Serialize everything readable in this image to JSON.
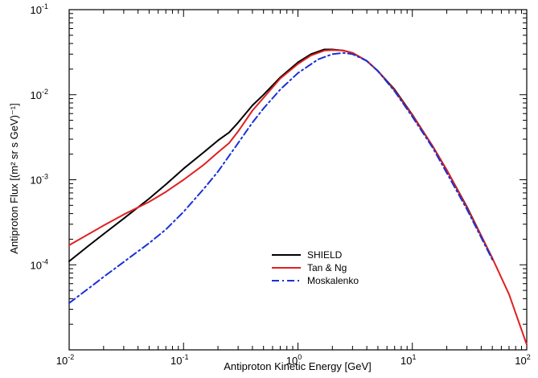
{
  "chart_data": {
    "type": "line",
    "title": "",
    "xlabel": "Antiproton Kinetic Energy [GeV]",
    "ylabel": "Antiproton Flux [(m² sr s GeV)⁻¹]",
    "xscale": "log",
    "yscale": "log",
    "xlim": [
      0.01,
      100
    ],
    "ylim": [
      1e-05,
      0.1
    ],
    "grid": false,
    "legend_position": "lower-center",
    "x_ticks": [
      {
        "value": 0.01,
        "base": "10",
        "exp": "-2"
      },
      {
        "value": 0.1,
        "base": "10",
        "exp": "-1"
      },
      {
        "value": 1,
        "base": "10",
        "exp": "0"
      },
      {
        "value": 10,
        "base": "10",
        "exp": "1"
      },
      {
        "value": 100,
        "base": "10",
        "exp": "2"
      }
    ],
    "y_ticks": [
      {
        "value": 0.1,
        "base": "10",
        "exp": "-1"
      },
      {
        "value": 0.01,
        "base": "10",
        "exp": "-2"
      },
      {
        "value": 0.001,
        "base": "10",
        "exp": "-3"
      },
      {
        "value": 0.0001,
        "base": "10",
        "exp": "-4"
      }
    ],
    "series": [
      {
        "name": "SHIELD",
        "color": "#000000",
        "style": "solid",
        "x": [
          0.01,
          0.015,
          0.02,
          0.03,
          0.05,
          0.07,
          0.1,
          0.15,
          0.2,
          0.25,
          0.3,
          0.4,
          0.5,
          0.7,
          1.0,
          1.3,
          1.7,
          2.0,
          2.5,
          3.0,
          4.0,
          5.0,
          7.0,
          10,
          15,
          20,
          30,
          50
        ],
        "y": [
          0.00011,
          0.00017,
          0.00023,
          0.00035,
          0.0006,
          0.00088,
          0.00135,
          0.0021,
          0.0029,
          0.0036,
          0.0047,
          0.0075,
          0.01,
          0.016,
          0.024,
          0.03,
          0.034,
          0.034,
          0.033,
          0.031,
          0.025,
          0.019,
          0.0115,
          0.0058,
          0.0025,
          0.0013,
          0.00048,
          0.00012
        ]
      },
      {
        "name": "Tan & Ng",
        "color": "#e02020",
        "style": "solid",
        "x": [
          0.01,
          0.02,
          0.03,
          0.05,
          0.07,
          0.1,
          0.15,
          0.2,
          0.25,
          0.3,
          0.4,
          0.5,
          0.7,
          1.0,
          1.3,
          1.7,
          2.0,
          2.5,
          3.0,
          4.0,
          5.0,
          7.0,
          10,
          15,
          20,
          30,
          50,
          70,
          100
        ],
        "y": [
          0.00017,
          0.00029,
          0.00039,
          0.00055,
          0.00072,
          0.001,
          0.0015,
          0.0021,
          0.0027,
          0.0037,
          0.0065,
          0.0092,
          0.0155,
          0.023,
          0.029,
          0.033,
          0.0335,
          0.033,
          0.031,
          0.025,
          0.019,
          0.0112,
          0.0057,
          0.0025,
          0.0013,
          0.00047,
          0.00012,
          4.5e-05,
          1.15e-05
        ]
      },
      {
        "name": "Moskalenko",
        "color": "#1a2fd8",
        "style": "dashdot",
        "x": [
          0.01,
          0.015,
          0.02,
          0.03,
          0.05,
          0.07,
          0.1,
          0.15,
          0.2,
          0.3,
          0.4,
          0.5,
          0.7,
          1.0,
          1.5,
          2.0,
          2.5,
          3.0,
          4.0,
          5.0,
          7.0,
          10,
          15,
          20,
          30,
          50
        ],
        "y": [
          3.55e-05,
          5.35e-05,
          7.2e-05,
          0.000108,
          0.00018,
          0.00026,
          0.00042,
          0.00078,
          0.00125,
          0.0027,
          0.0047,
          0.0069,
          0.0115,
          0.018,
          0.026,
          0.03,
          0.031,
          0.03,
          0.025,
          0.019,
          0.011,
          0.0055,
          0.0024,
          0.0012,
          0.00045,
          0.000115
        ]
      }
    ]
  }
}
